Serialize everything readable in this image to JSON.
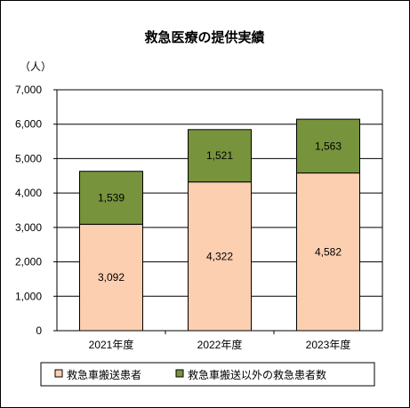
{
  "chart_data": {
    "type": "bar",
    "stacked": true,
    "title": "救急医療の提供実績",
    "ylabel": "（人）",
    "xlabel": "",
    "categories": [
      "2021年度",
      "2022年度",
      "2023年度"
    ],
    "ylim": [
      0,
      7000
    ],
    "yticks": [
      "0",
      "1,000",
      "2,000",
      "3,000",
      "4,000",
      "5,000",
      "6,000",
      "7,000"
    ],
    "grid": true,
    "legend_position": "bottom",
    "series": [
      {
        "name": "救急車搬送患者",
        "values": [
          3092,
          4322,
          4582
        ],
        "labels": [
          "3,092",
          "4,322",
          "4,582"
        ],
        "color": "#FCCFB0"
      },
      {
        "name": "救急車搬送以外の救急患者数",
        "values": [
          1539,
          1521,
          1563
        ],
        "labels": [
          "1,539",
          "1,521",
          "1,563"
        ],
        "color": "#77933C"
      }
    ]
  }
}
